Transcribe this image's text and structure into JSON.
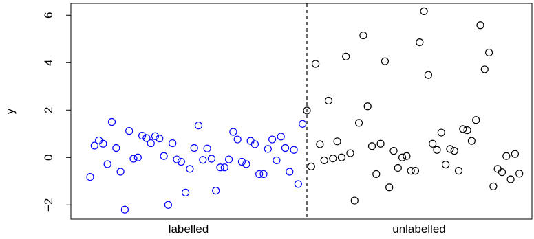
{
  "chart_data": {
    "type": "scatter",
    "ylabel": "y",
    "ylim": [
      -2.6,
      6.5
    ],
    "yticks": [
      -2,
      0,
      2,
      4,
      6
    ],
    "grid": false,
    "legend": "none",
    "groups": [
      {
        "label": "labelled",
        "color": "#0000ff",
        "y": [
          -0.82,
          0.5,
          0.72,
          0.58,
          -0.28,
          1.5,
          0.4,
          -0.6,
          -2.2,
          1.12,
          -0.05,
          0.0,
          0.92,
          0.82,
          0.6,
          0.9,
          0.8,
          0.06,
          -2.0,
          0.6,
          -0.08,
          -0.18,
          -1.48,
          -0.48,
          0.4,
          1.35,
          -0.1,
          0.38,
          -0.05,
          -1.4,
          -0.42,
          -0.42,
          -0.08,
          1.08,
          0.76,
          -0.18,
          -0.28,
          0.7,
          0.56,
          -0.7,
          -0.7,
          0.36,
          0.76,
          -0.12,
          0.88,
          0.4,
          -0.6,
          0.32,
          -1.12,
          1.42
        ]
      },
      {
        "label": "unlabelled",
        "color": "#000000",
        "y": [
          1.98,
          -0.38,
          3.95,
          0.56,
          -0.12,
          2.4,
          -0.04,
          0.68,
          0.0,
          4.26,
          0.18,
          -1.82,
          1.46,
          5.15,
          2.16,
          0.48,
          -0.7,
          0.58,
          4.06,
          -1.26,
          0.28,
          -0.44,
          0.0,
          0.06,
          -0.56,
          -0.56,
          4.86,
          6.17,
          3.48,
          0.58,
          0.32,
          1.05,
          -0.3,
          0.36,
          0.28,
          -0.56,
          1.2,
          1.15,
          0.7,
          1.58,
          5.58,
          3.72,
          4.43,
          -1.22,
          -0.48,
          -0.62,
          0.06,
          -0.92,
          0.15,
          -0.68
        ]
      }
    ]
  }
}
